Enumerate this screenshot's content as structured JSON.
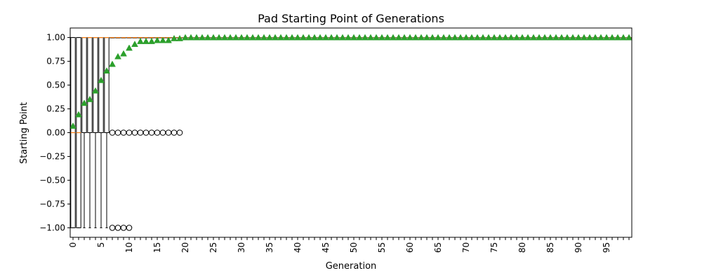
{
  "chart_data": {
    "type": "box",
    "title": "Pad Starting Point of Generations",
    "xlabel": "Generation",
    "ylabel": "Starting Point",
    "ylim": [
      -1.1,
      1.1
    ],
    "yticks": [
      -1.0,
      -0.75,
      -0.5,
      -0.25,
      0.0,
      0.25,
      0.5,
      0.75,
      1.0
    ],
    "ytick_labels": [
      "−1.00",
      "−0.75",
      "−0.50",
      "−0.25",
      "0.00",
      "0.25",
      "0.50",
      "0.75",
      "1.00"
    ],
    "xticks": [
      0,
      5,
      10,
      15,
      20,
      25,
      30,
      35,
      40,
      45,
      50,
      55,
      60,
      65,
      70,
      75,
      80,
      85,
      90,
      95
    ],
    "xtick_labels": [
      "0",
      "5",
      "10",
      "15",
      "20",
      "25",
      "30",
      "35",
      "40",
      "45",
      "50",
      "55",
      "60",
      "65",
      "70",
      "75",
      "80",
      "85",
      "90",
      "95"
    ],
    "generations": 100,
    "means": [
      0.07,
      0.19,
      0.31,
      0.35,
      0.44,
      0.55,
      0.65,
      0.72,
      0.8,
      0.83,
      0.89,
      0.93,
      0.96,
      0.96,
      0.96,
      0.97,
      0.97,
      0.97,
      0.99,
      0.99
    ],
    "mean_default": 1.0,
    "boxes": [
      {
        "gen": 0,
        "q1": -1.0,
        "median": 0.0,
        "q3": 1.0,
        "wlo": -1.0,
        "whi": 1.0
      },
      {
        "gen": 1,
        "q1": -1.0,
        "median": 0.0,
        "q3": 1.0,
        "wlo": -1.0,
        "whi": 1.0
      },
      {
        "gen": 2,
        "q1": 0.0,
        "median": 1.0,
        "q3": 1.0,
        "wlo": -1.0,
        "whi": 1.0
      },
      {
        "gen": 3,
        "q1": 0.0,
        "median": 1.0,
        "q3": 1.0,
        "wlo": -1.0,
        "whi": 1.0
      },
      {
        "gen": 4,
        "q1": 0.0,
        "median": 1.0,
        "q3": 1.0,
        "wlo": -1.0,
        "whi": 1.0
      },
      {
        "gen": 5,
        "q1": 0.0,
        "median": 1.0,
        "q3": 1.0,
        "wlo": -1.0,
        "whi": 1.0
      },
      {
        "gen": 6,
        "q1": 0.0,
        "median": 1.0,
        "q3": 1.0,
        "wlo": -1.0,
        "whi": 1.0
      }
    ],
    "box_default": {
      "q1": 1.0,
      "median": 1.0,
      "q3": 1.0,
      "wlo": 1.0,
      "whi": 1.0
    },
    "outliers": [
      {
        "gen": 7,
        "values": [
          0.0,
          -1.0
        ]
      },
      {
        "gen": 8,
        "values": [
          0.0,
          -1.0
        ]
      },
      {
        "gen": 9,
        "values": [
          0.0,
          -1.0
        ]
      },
      {
        "gen": 10,
        "values": [
          0.0,
          -1.0
        ]
      },
      {
        "gen": 11,
        "values": [
          0.0
        ]
      },
      {
        "gen": 12,
        "values": [
          0.0
        ]
      },
      {
        "gen": 13,
        "values": [
          0.0
        ]
      },
      {
        "gen": 14,
        "values": [
          0.0
        ]
      },
      {
        "gen": 15,
        "values": [
          0.0
        ]
      },
      {
        "gen": 16,
        "values": [
          0.0
        ]
      },
      {
        "gen": 17,
        "values": [
          0.0
        ]
      },
      {
        "gen": 18,
        "values": [
          0.0
        ]
      },
      {
        "gen": 19,
        "values": [
          0.0
        ]
      }
    ],
    "colors": {
      "box_edge": "#000000",
      "median": "#ff7f0e",
      "mean_marker": "#2ca02c",
      "outlier_edge": "#000000",
      "background": "#ffffff"
    },
    "grid": false,
    "legend": "none"
  }
}
